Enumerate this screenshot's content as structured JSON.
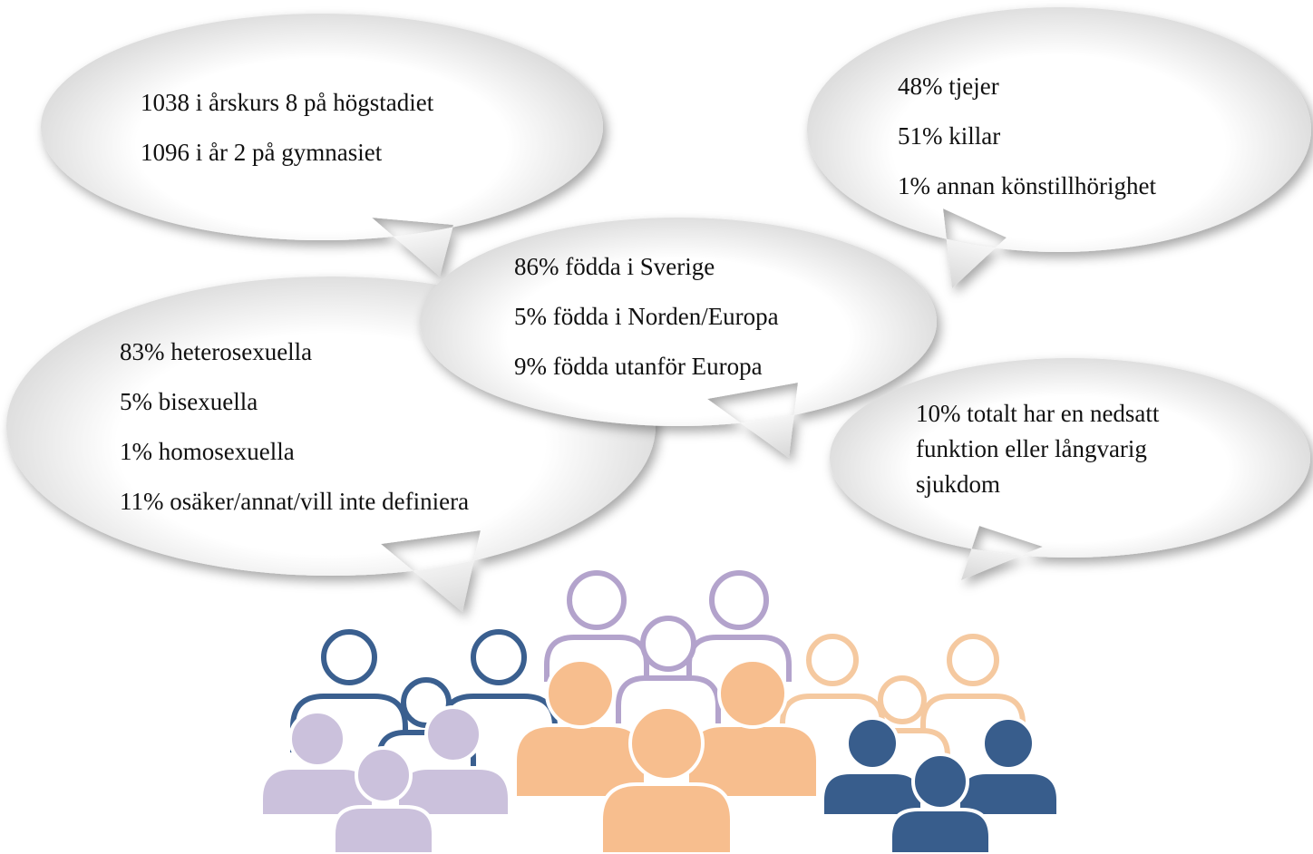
{
  "bubbles": [
    {
      "lines": [
        "1038 i årskurs 8 på högstadiet",
        "1096 i år 2 på gymnasiet"
      ]
    },
    {
      "lines": [
        "48% tjejer",
        "51% killar",
        "1% annan könstillhörighet"
      ]
    },
    {
      "lines": [
        "83% heterosexuella",
        "5% bisexuella",
        "1% homosexuella",
        "11% osäker/annat/vill inte definiera"
      ]
    },
    {
      "lines": [
        "86% födda i Sverige",
        "5% födda i Norden/Europa",
        "9% födda utanför Europa"
      ]
    },
    {
      "lines": [
        "10% totalt har en nedsatt funktion eller långvarig sjukdom"
      ]
    }
  ]
}
